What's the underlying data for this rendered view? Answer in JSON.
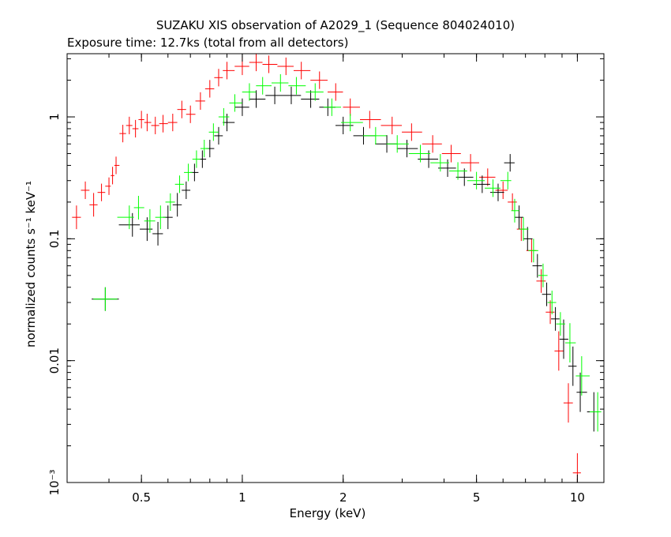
{
  "chart_data": {
    "type": "scatter",
    "title": "SUZAKU XIS observation of A2029_1 (Sequence 804024010)",
    "subtitle": "Exposure time: 12.7ks (total from all detectors)",
    "xlabel": "Energy (keV)",
    "ylabel": "normalized counts s⁻¹ keV⁻¹",
    "x_scale": "log",
    "y_scale": "log",
    "xlim": [
      0.3,
      12
    ],
    "ylim": [
      0.001,
      3.3
    ],
    "x_ticks": [
      {
        "value": 0.5,
        "label": "0.5"
      },
      {
        "value": 1,
        "label": "1"
      },
      {
        "value": 2,
        "label": "2"
      },
      {
        "value": 5,
        "label": "5"
      },
      {
        "value": 10,
        "label": "10"
      }
    ],
    "y_ticks": [
      {
        "value": 0.001,
        "label": "10⁻³"
      },
      {
        "value": 0.01,
        "label": "0.01"
      },
      {
        "value": 0.1,
        "label": "0.1"
      },
      {
        "value": 1,
        "label": "1"
      }
    ],
    "grid": false,
    "colors": {
      "red": "#ff0000",
      "black": "#000000",
      "green": "#00ff00"
    },
    "series": [
      {
        "color": "red",
        "points": [
          {
            "x": 0.32,
            "y": 0.15
          },
          {
            "x": 0.34,
            "y": 0.25
          },
          {
            "x": 0.36,
            "y": 0.19
          },
          {
            "x": 0.38,
            "y": 0.24
          },
          {
            "x": 0.4,
            "y": 0.27
          },
          {
            "x": 0.41,
            "y": 0.33
          },
          {
            "x": 0.42,
            "y": 0.4
          },
          {
            "x": 0.44,
            "y": 0.73
          },
          {
            "x": 0.46,
            "y": 0.85
          },
          {
            "x": 0.48,
            "y": 0.8
          },
          {
            "x": 0.5,
            "y": 0.95
          },
          {
            "x": 0.52,
            "y": 0.9
          },
          {
            "x": 0.55,
            "y": 0.85
          },
          {
            "x": 0.58,
            "y": 0.88
          },
          {
            "x": 0.62,
            "y": 0.9
          },
          {
            "x": 0.66,
            "y": 1.15
          },
          {
            "x": 0.7,
            "y": 1.05
          },
          {
            "x": 0.75,
            "y": 1.35
          },
          {
            "x": 0.8,
            "y": 1.7
          },
          {
            "x": 0.85,
            "y": 2.1
          },
          {
            "x": 0.9,
            "y": 2.4
          },
          {
            "x": 1.0,
            "y": 2.6
          },
          {
            "x": 1.1,
            "y": 2.8
          },
          {
            "x": 1.2,
            "y": 2.7
          },
          {
            "x": 1.35,
            "y": 2.6
          },
          {
            "x": 1.5,
            "y": 2.4
          },
          {
            "x": 1.7,
            "y": 2.0
          },
          {
            "x": 1.9,
            "y": 1.6
          },
          {
            "x": 2.1,
            "y": 1.2
          },
          {
            "x": 2.4,
            "y": 0.95
          },
          {
            "x": 2.8,
            "y": 0.85
          },
          {
            "x": 3.2,
            "y": 0.75
          },
          {
            "x": 3.7,
            "y": 0.6
          },
          {
            "x": 4.2,
            "y": 0.5
          },
          {
            "x": 4.8,
            "y": 0.42
          },
          {
            "x": 5.4,
            "y": 0.32
          },
          {
            "x": 6.0,
            "y": 0.25
          },
          {
            "x": 6.4,
            "y": 0.2
          },
          {
            "x": 6.8,
            "y": 0.12
          },
          {
            "x": 7.3,
            "y": 0.08
          },
          {
            "x": 7.8,
            "y": 0.045
          },
          {
            "x": 8.3,
            "y": 0.025
          },
          {
            "x": 8.8,
            "y": 0.012
          },
          {
            "x": 9.4,
            "y": 0.0045
          },
          {
            "x": 10.0,
            "y": 0.0012
          }
        ]
      },
      {
        "color": "black",
        "points": [
          {
            "x": 0.39,
            "y": 0.032
          },
          {
            "x": 0.47,
            "y": 0.13
          },
          {
            "x": 0.52,
            "y": 0.12
          },
          {
            "x": 0.56,
            "y": 0.11
          },
          {
            "x": 0.6,
            "y": 0.15
          },
          {
            "x": 0.64,
            "y": 0.19
          },
          {
            "x": 0.68,
            "y": 0.25
          },
          {
            "x": 0.72,
            "y": 0.35
          },
          {
            "x": 0.76,
            "y": 0.45
          },
          {
            "x": 0.8,
            "y": 0.55
          },
          {
            "x": 0.85,
            "y": 0.7
          },
          {
            "x": 0.9,
            "y": 0.9
          },
          {
            "x": 1.0,
            "y": 1.2
          },
          {
            "x": 1.1,
            "y": 1.4
          },
          {
            "x": 1.25,
            "y": 1.5
          },
          {
            "x": 1.4,
            "y": 1.5
          },
          {
            "x": 1.6,
            "y": 1.4
          },
          {
            "x": 1.8,
            "y": 1.2
          },
          {
            "x": 2.0,
            "y": 0.85
          },
          {
            "x": 2.3,
            "y": 0.7
          },
          {
            "x": 2.7,
            "y": 0.6
          },
          {
            "x": 3.1,
            "y": 0.55
          },
          {
            "x": 3.6,
            "y": 0.45
          },
          {
            "x": 4.1,
            "y": 0.38
          },
          {
            "x": 4.6,
            "y": 0.32
          },
          {
            "x": 5.2,
            "y": 0.28
          },
          {
            "x": 5.8,
            "y": 0.24
          },
          {
            "x": 6.3,
            "y": 0.42
          },
          {
            "x": 6.7,
            "y": 0.15
          },
          {
            "x": 7.1,
            "y": 0.1
          },
          {
            "x": 7.6,
            "y": 0.06
          },
          {
            "x": 8.1,
            "y": 0.035
          },
          {
            "x": 8.6,
            "y": 0.022
          },
          {
            "x": 9.1,
            "y": 0.015
          },
          {
            "x": 9.7,
            "y": 0.009
          },
          {
            "x": 10.2,
            "y": 0.0055
          },
          {
            "x": 11.2,
            "y": 0.0038
          }
        ]
      },
      {
        "color": "green",
        "points": [
          {
            "x": 0.39,
            "y": 0.032
          },
          {
            "x": 0.46,
            "y": 0.15
          },
          {
            "x": 0.49,
            "y": 0.18
          },
          {
            "x": 0.53,
            "y": 0.14
          },
          {
            "x": 0.57,
            "y": 0.15
          },
          {
            "x": 0.61,
            "y": 0.2
          },
          {
            "x": 0.65,
            "y": 0.28
          },
          {
            "x": 0.69,
            "y": 0.35
          },
          {
            "x": 0.73,
            "y": 0.45
          },
          {
            "x": 0.77,
            "y": 0.55
          },
          {
            "x": 0.82,
            "y": 0.75
          },
          {
            "x": 0.88,
            "y": 1.0
          },
          {
            "x": 0.95,
            "y": 1.3
          },
          {
            "x": 1.05,
            "y": 1.6
          },
          {
            "x": 1.15,
            "y": 1.8
          },
          {
            "x": 1.3,
            "y": 1.9
          },
          {
            "x": 1.45,
            "y": 1.8
          },
          {
            "x": 1.65,
            "y": 1.6
          },
          {
            "x": 1.85,
            "y": 1.2
          },
          {
            "x": 2.1,
            "y": 0.9
          },
          {
            "x": 2.5,
            "y": 0.7
          },
          {
            "x": 2.9,
            "y": 0.6
          },
          {
            "x": 3.4,
            "y": 0.5
          },
          {
            "x": 3.9,
            "y": 0.42
          },
          {
            "x": 4.4,
            "y": 0.36
          },
          {
            "x": 5.0,
            "y": 0.3
          },
          {
            "x": 5.6,
            "y": 0.26
          },
          {
            "x": 6.2,
            "y": 0.3
          },
          {
            "x": 6.5,
            "y": 0.17
          },
          {
            "x": 6.9,
            "y": 0.12
          },
          {
            "x": 7.4,
            "y": 0.08
          },
          {
            "x": 7.9,
            "y": 0.05
          },
          {
            "x": 8.4,
            "y": 0.03
          },
          {
            "x": 8.9,
            "y": 0.02
          },
          {
            "x": 9.5,
            "y": 0.014
          },
          {
            "x": 10.3,
            "y": 0.0075
          },
          {
            "x": 11.5,
            "y": 0.0038
          }
        ]
      }
    ]
  }
}
